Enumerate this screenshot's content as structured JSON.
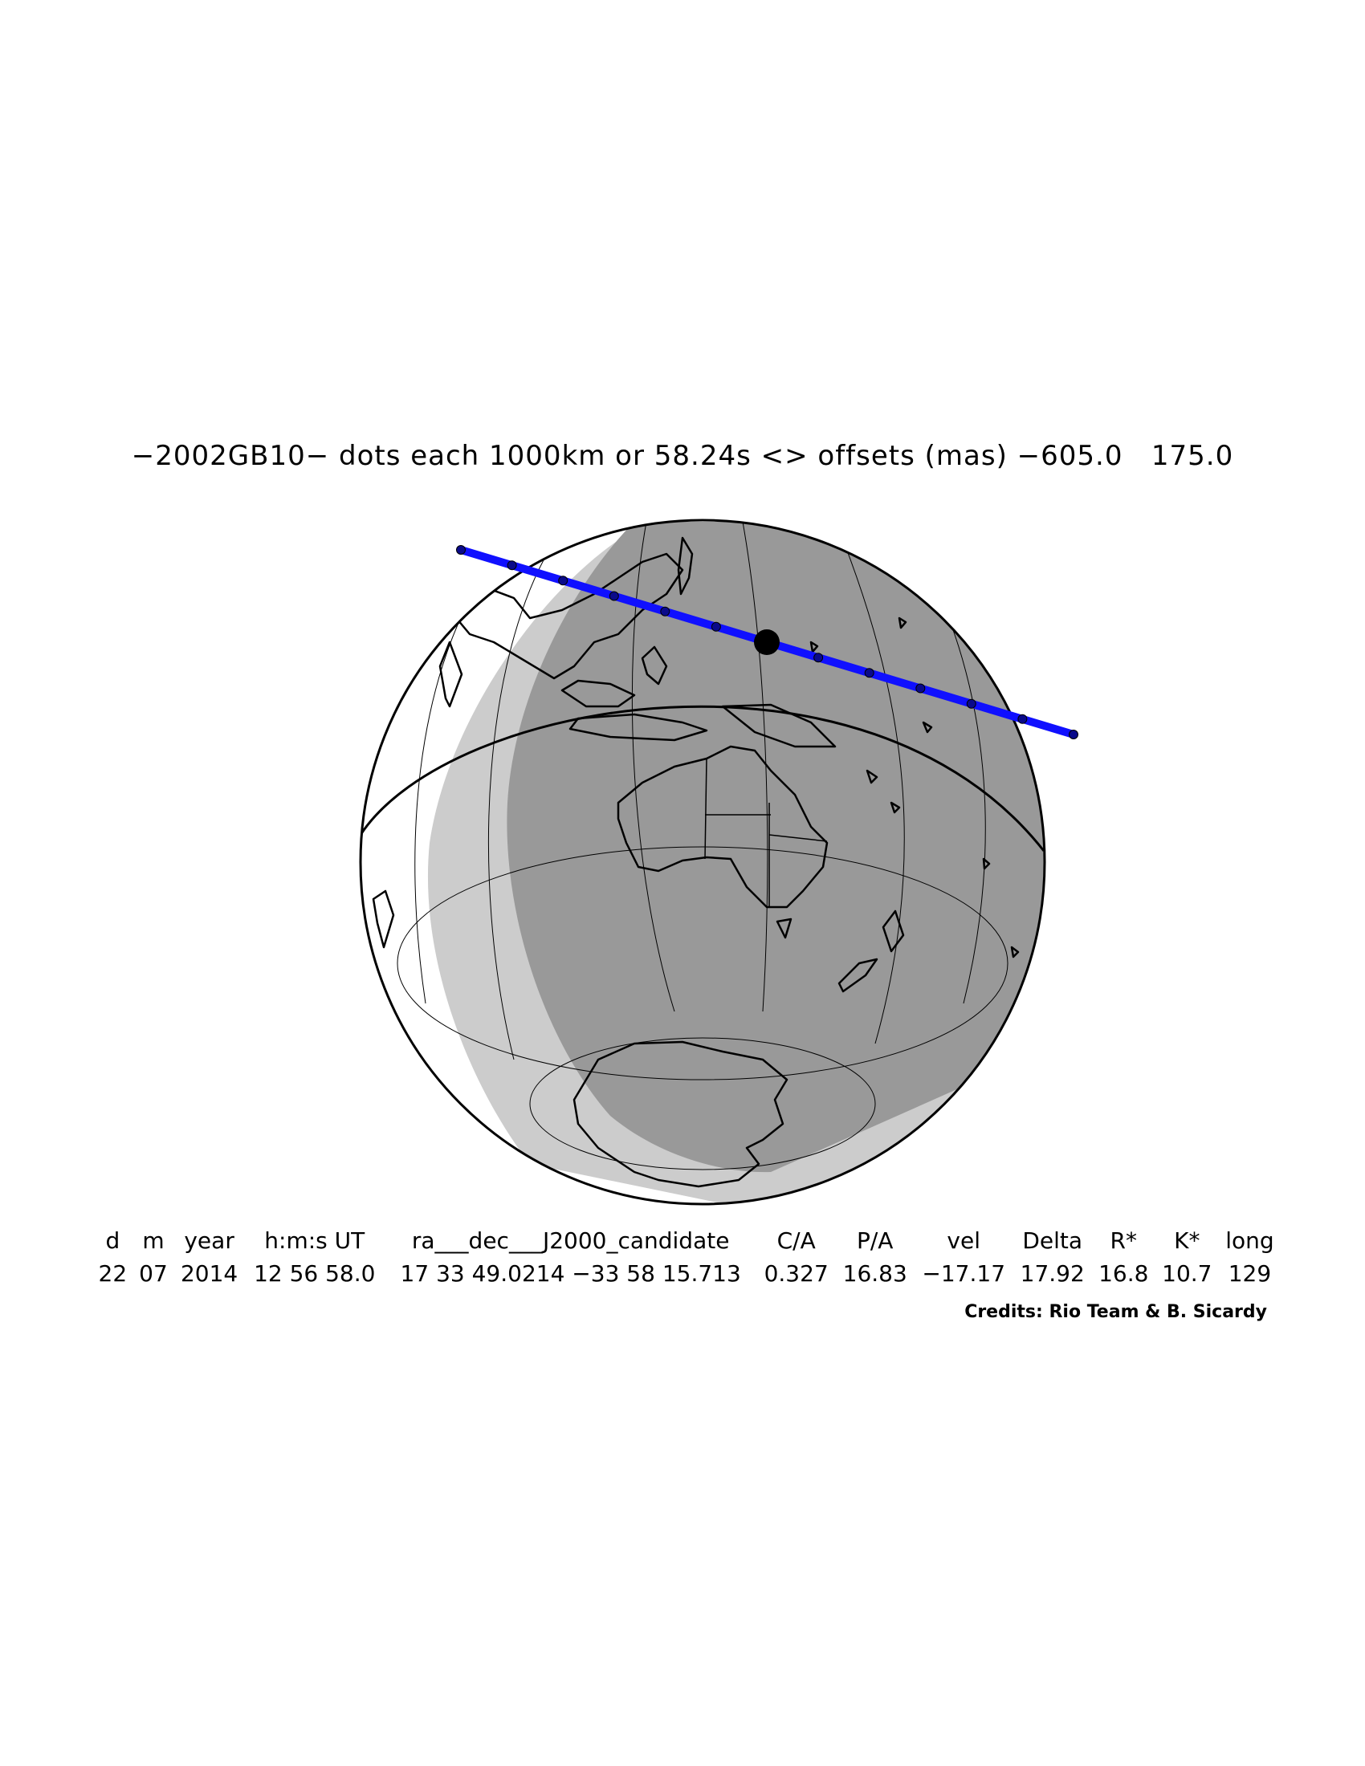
{
  "title": "−2002GB10− dots each 1000km or 58.24s <> offsets (mas) −605.0   175.0",
  "table": {
    "headers": [
      "d",
      "m",
      "year",
      "h:m:s UT",
      "ra___dec___J2000_candidate",
      "C/A",
      "P/A",
      "vel",
      "Delta",
      "R*",
      "K*",
      "long"
    ],
    "values": [
      "22",
      "07",
      "2014",
      "12 56 58.0",
      "17 33 49.0214 −33 58 15.713",
      "0.327",
      "16.83",
      "−17.17",
      "17.92",
      "16.8",
      "10.7",
      "129"
    ]
  },
  "credits": "Credits: Rio Team & B. Sicardy",
  "colors": {
    "path": "#1010ff",
    "night": "#999999",
    "twilight": "#cccccc",
    "day": "#ffffff",
    "outline": "#000000"
  }
}
